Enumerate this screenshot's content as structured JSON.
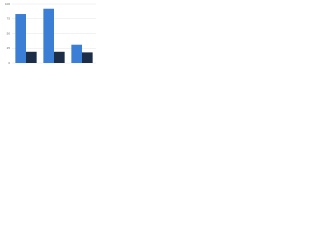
{
  "chart_data": {
    "type": "bar",
    "categories": [
      null,
      null,
      null
    ],
    "series": [
      {
        "color": "#3a7fd5",
        "values": [
          83,
          92,
          31
        ]
      },
      {
        "color": "#1c2d47",
        "values": [
          19,
          19,
          18
        ]
      }
    ],
    "ylim": [
      0,
      100
    ],
    "yticks": [
      0,
      25,
      50,
      75,
      100
    ],
    "grid": true
  }
}
